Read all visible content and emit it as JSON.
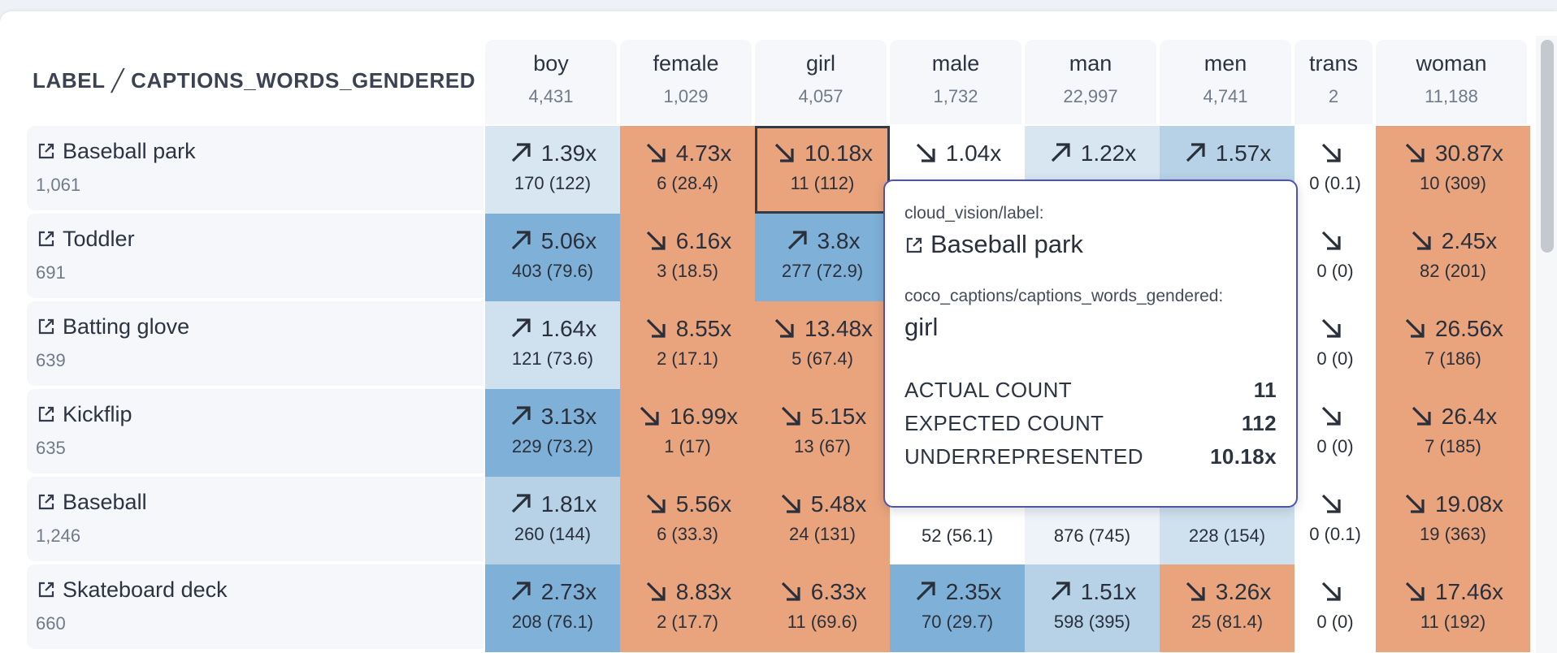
{
  "header": {
    "axis_label": "LABEL ╱ CAPTIONS_WORDS_GENDERED"
  },
  "columns": [
    {
      "name": "boy",
      "count": "4,431"
    },
    {
      "name": "female",
      "count": "1,029"
    },
    {
      "name": "girl",
      "count": "4,057"
    },
    {
      "name": "male",
      "count": "1,732"
    },
    {
      "name": "man",
      "count": "22,997"
    },
    {
      "name": "men",
      "count": "4,741"
    },
    {
      "name": "trans",
      "count": "2"
    },
    {
      "name": "woman",
      "count": "11,188"
    }
  ],
  "rows": [
    {
      "label": "Baseball park",
      "count": "1,061",
      "cells": [
        {
          "ratio": "1.39x",
          "sub": "170 (122)",
          "dir": "up",
          "color": "#d7e6f1"
        },
        {
          "ratio": "4.73x",
          "sub": "6 (28.4)",
          "dir": "down",
          "color": "#e9a47d"
        },
        {
          "ratio": "10.18x",
          "sub": "11 (112)",
          "dir": "down",
          "color": "#e9a47d",
          "selected": true
        },
        {
          "ratio": "1.04x",
          "sub": "",
          "dir": "down",
          "color": "#ffffff"
        },
        {
          "ratio": "1.22x",
          "sub": "",
          "dir": "up",
          "color": "#d7e6f1"
        },
        {
          "ratio": "1.57x",
          "sub": "",
          "dir": "up",
          "color": "#b7d1e6"
        },
        {
          "ratio": "",
          "sub": "0 (0.1)",
          "dir": "down",
          "color": "#ffffff"
        },
        {
          "ratio": "30.87x",
          "sub": "10 (309)",
          "dir": "down",
          "color": "#e9a47d"
        }
      ]
    },
    {
      "label": "Toddler",
      "count": "691",
      "cells": [
        {
          "ratio": "5.06x",
          "sub": "403 (79.6)",
          "dir": "up",
          "color": "#7fb0d7"
        },
        {
          "ratio": "6.16x",
          "sub": "3 (18.5)",
          "dir": "down",
          "color": "#e9a47d"
        },
        {
          "ratio": "3.8x",
          "sub": "277 (72.9)",
          "dir": "up",
          "color": "#7fb0d7"
        },
        {
          "ratio": "",
          "sub": "",
          "dir": "none",
          "color": "#ffffff"
        },
        {
          "ratio": "",
          "sub": "",
          "dir": "none",
          "color": "#ffffff"
        },
        {
          "ratio": "",
          "sub": "",
          "dir": "none",
          "color": "#ffffff"
        },
        {
          "ratio": "",
          "sub": "0 (0)",
          "dir": "down",
          "color": "#ffffff"
        },
        {
          "ratio": "2.45x",
          "sub": "82 (201)",
          "dir": "down",
          "color": "#e9a47d"
        }
      ]
    },
    {
      "label": "Batting glove",
      "count": "639",
      "cells": [
        {
          "ratio": "1.64x",
          "sub": "121 (73.6)",
          "dir": "up",
          "color": "#cfe1ef"
        },
        {
          "ratio": "8.55x",
          "sub": "2 (17.1)",
          "dir": "down",
          "color": "#e9a47d"
        },
        {
          "ratio": "13.48x",
          "sub": "5 (67.4)",
          "dir": "down",
          "color": "#e9a47d"
        },
        {
          "ratio": "",
          "sub": "",
          "dir": "none",
          "color": "#ffffff"
        },
        {
          "ratio": "",
          "sub": "",
          "dir": "none",
          "color": "#ffffff"
        },
        {
          "ratio": "",
          "sub": "",
          "dir": "none",
          "color": "#ffffff"
        },
        {
          "ratio": "",
          "sub": "0 (0)",
          "dir": "down",
          "color": "#ffffff"
        },
        {
          "ratio": "26.56x",
          "sub": "7 (186)",
          "dir": "down",
          "color": "#e9a47d"
        }
      ]
    },
    {
      "label": "Kickflip",
      "count": "635",
      "cells": [
        {
          "ratio": "3.13x",
          "sub": "229 (73.2)",
          "dir": "up",
          "color": "#7fb0d7"
        },
        {
          "ratio": "16.99x",
          "sub": "1 (17)",
          "dir": "down",
          "color": "#e9a47d"
        },
        {
          "ratio": "5.15x",
          "sub": "13 (67)",
          "dir": "down",
          "color": "#e9a47d"
        },
        {
          "ratio": "",
          "sub": "",
          "dir": "none",
          "color": "#ffffff"
        },
        {
          "ratio": "",
          "sub": "",
          "dir": "none",
          "color": "#ffffff"
        },
        {
          "ratio": "",
          "sub": "",
          "dir": "none",
          "color": "#ffffff"
        },
        {
          "ratio": "",
          "sub": "0 (0)",
          "dir": "down",
          "color": "#ffffff"
        },
        {
          "ratio": "26.4x",
          "sub": "7 (185)",
          "dir": "down",
          "color": "#e9a47d"
        }
      ]
    },
    {
      "label": "Baseball",
      "count": "1,246",
      "cells": [
        {
          "ratio": "1.81x",
          "sub": "260 (144)",
          "dir": "up",
          "color": "#b7d1e6"
        },
        {
          "ratio": "5.56x",
          "sub": "6 (33.3)",
          "dir": "down",
          "color": "#e9a47d"
        },
        {
          "ratio": "5.48x",
          "sub": "24 (131)",
          "dir": "down",
          "color": "#e9a47d"
        },
        {
          "ratio": "",
          "sub": "52 (56.1)",
          "dir": "none",
          "color": "#ffffff"
        },
        {
          "ratio": "",
          "sub": "876 (745)",
          "dir": "none",
          "color": "#edf3f9"
        },
        {
          "ratio": "",
          "sub": "228 (154)",
          "dir": "none",
          "color": "#cfe1ef"
        },
        {
          "ratio": "",
          "sub": "0 (0.1)",
          "dir": "down",
          "color": "#ffffff"
        },
        {
          "ratio": "19.08x",
          "sub": "19 (363)",
          "dir": "down",
          "color": "#e9a47d"
        }
      ]
    },
    {
      "label": "Skateboard deck",
      "count": "660",
      "cells": [
        {
          "ratio": "2.73x",
          "sub": "208 (76.1)",
          "dir": "up",
          "color": "#7fb0d7"
        },
        {
          "ratio": "8.83x",
          "sub": "2 (17.7)",
          "dir": "down",
          "color": "#e9a47d"
        },
        {
          "ratio": "6.33x",
          "sub": "11 (69.6)",
          "dir": "down",
          "color": "#e9a47d"
        },
        {
          "ratio": "2.35x",
          "sub": "70 (29.7)",
          "dir": "up",
          "color": "#7fb0d7"
        },
        {
          "ratio": "1.51x",
          "sub": "598 (395)",
          "dir": "up",
          "color": "#b7d1e6"
        },
        {
          "ratio": "3.26x",
          "sub": "25 (81.4)",
          "dir": "down",
          "color": "#e9a47d"
        },
        {
          "ratio": "",
          "sub": "0 (0)",
          "dir": "down",
          "color": "#ffffff"
        },
        {
          "ratio": "17.46x",
          "sub": "11 (192)",
          "dir": "down",
          "color": "#e9a47d"
        }
      ]
    }
  ],
  "tooltip": {
    "label_key": "cloud_vision/label:",
    "label_value": "Baseball park",
    "caption_key": "coco_captions/captions_words_gendered:",
    "caption_value": "girl",
    "stats": [
      {
        "name": "ACTUAL COUNT",
        "value": "11"
      },
      {
        "name": "EXPECTED COUNT",
        "value": "112"
      },
      {
        "name": "UNDERREPRESENTED",
        "value": "10.18x"
      }
    ]
  }
}
